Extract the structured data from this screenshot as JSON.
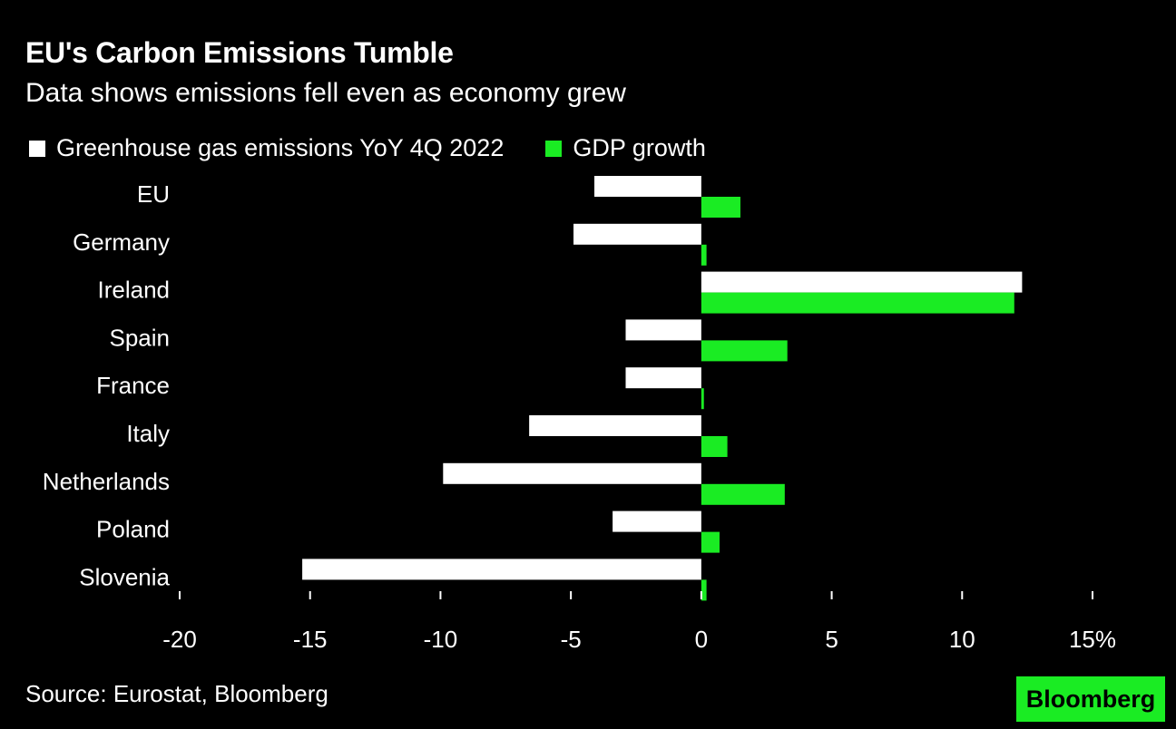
{
  "header": {
    "title": "EU's Carbon Emissions Tumble",
    "subtitle": "Data shows emissions fell even as economy grew"
  },
  "legend": {
    "items": [
      {
        "label": "Greenhouse gas emissions YoY 4Q 2022",
        "color": "#ffffff"
      },
      {
        "label": "GDP growth",
        "color": "#1aec23"
      }
    ]
  },
  "footer": {
    "source": "Source: Eurostat, Bloomberg",
    "logo": "Bloomberg"
  },
  "chart_data": {
    "type": "bar",
    "orientation": "horizontal",
    "title": "EU's Carbon Emissions Tumble",
    "subtitle": "Data shows emissions fell even as economy grew",
    "categories": [
      "EU",
      "Germany",
      "Ireland",
      "Spain",
      "France",
      "Italy",
      "Netherlands",
      "Poland",
      "Slovenia"
    ],
    "series": [
      {
        "name": "Greenhouse gas emissions YoY 4Q 2022",
        "color": "#ffffff",
        "values": [
          -4.1,
          -4.9,
          12.3,
          -2.9,
          -2.9,
          -6.6,
          -9.9,
          -3.4,
          -15.3
        ]
      },
      {
        "name": "GDP growth",
        "color": "#1aec23",
        "values": [
          1.5,
          0.2,
          12.0,
          3.3,
          0.1,
          1.0,
          3.2,
          0.7,
          0.2
        ]
      }
    ],
    "xlim": [
      -20,
      15
    ],
    "xticks": [
      -20,
      -15,
      -10,
      -5,
      0,
      5,
      10,
      15
    ],
    "xtick_labels": [
      "-20",
      "-15",
      "-10",
      "-5",
      "0",
      "5",
      "10",
      "15%"
    ],
    "xlabel": "",
    "ylabel": "",
    "grid": false
  }
}
